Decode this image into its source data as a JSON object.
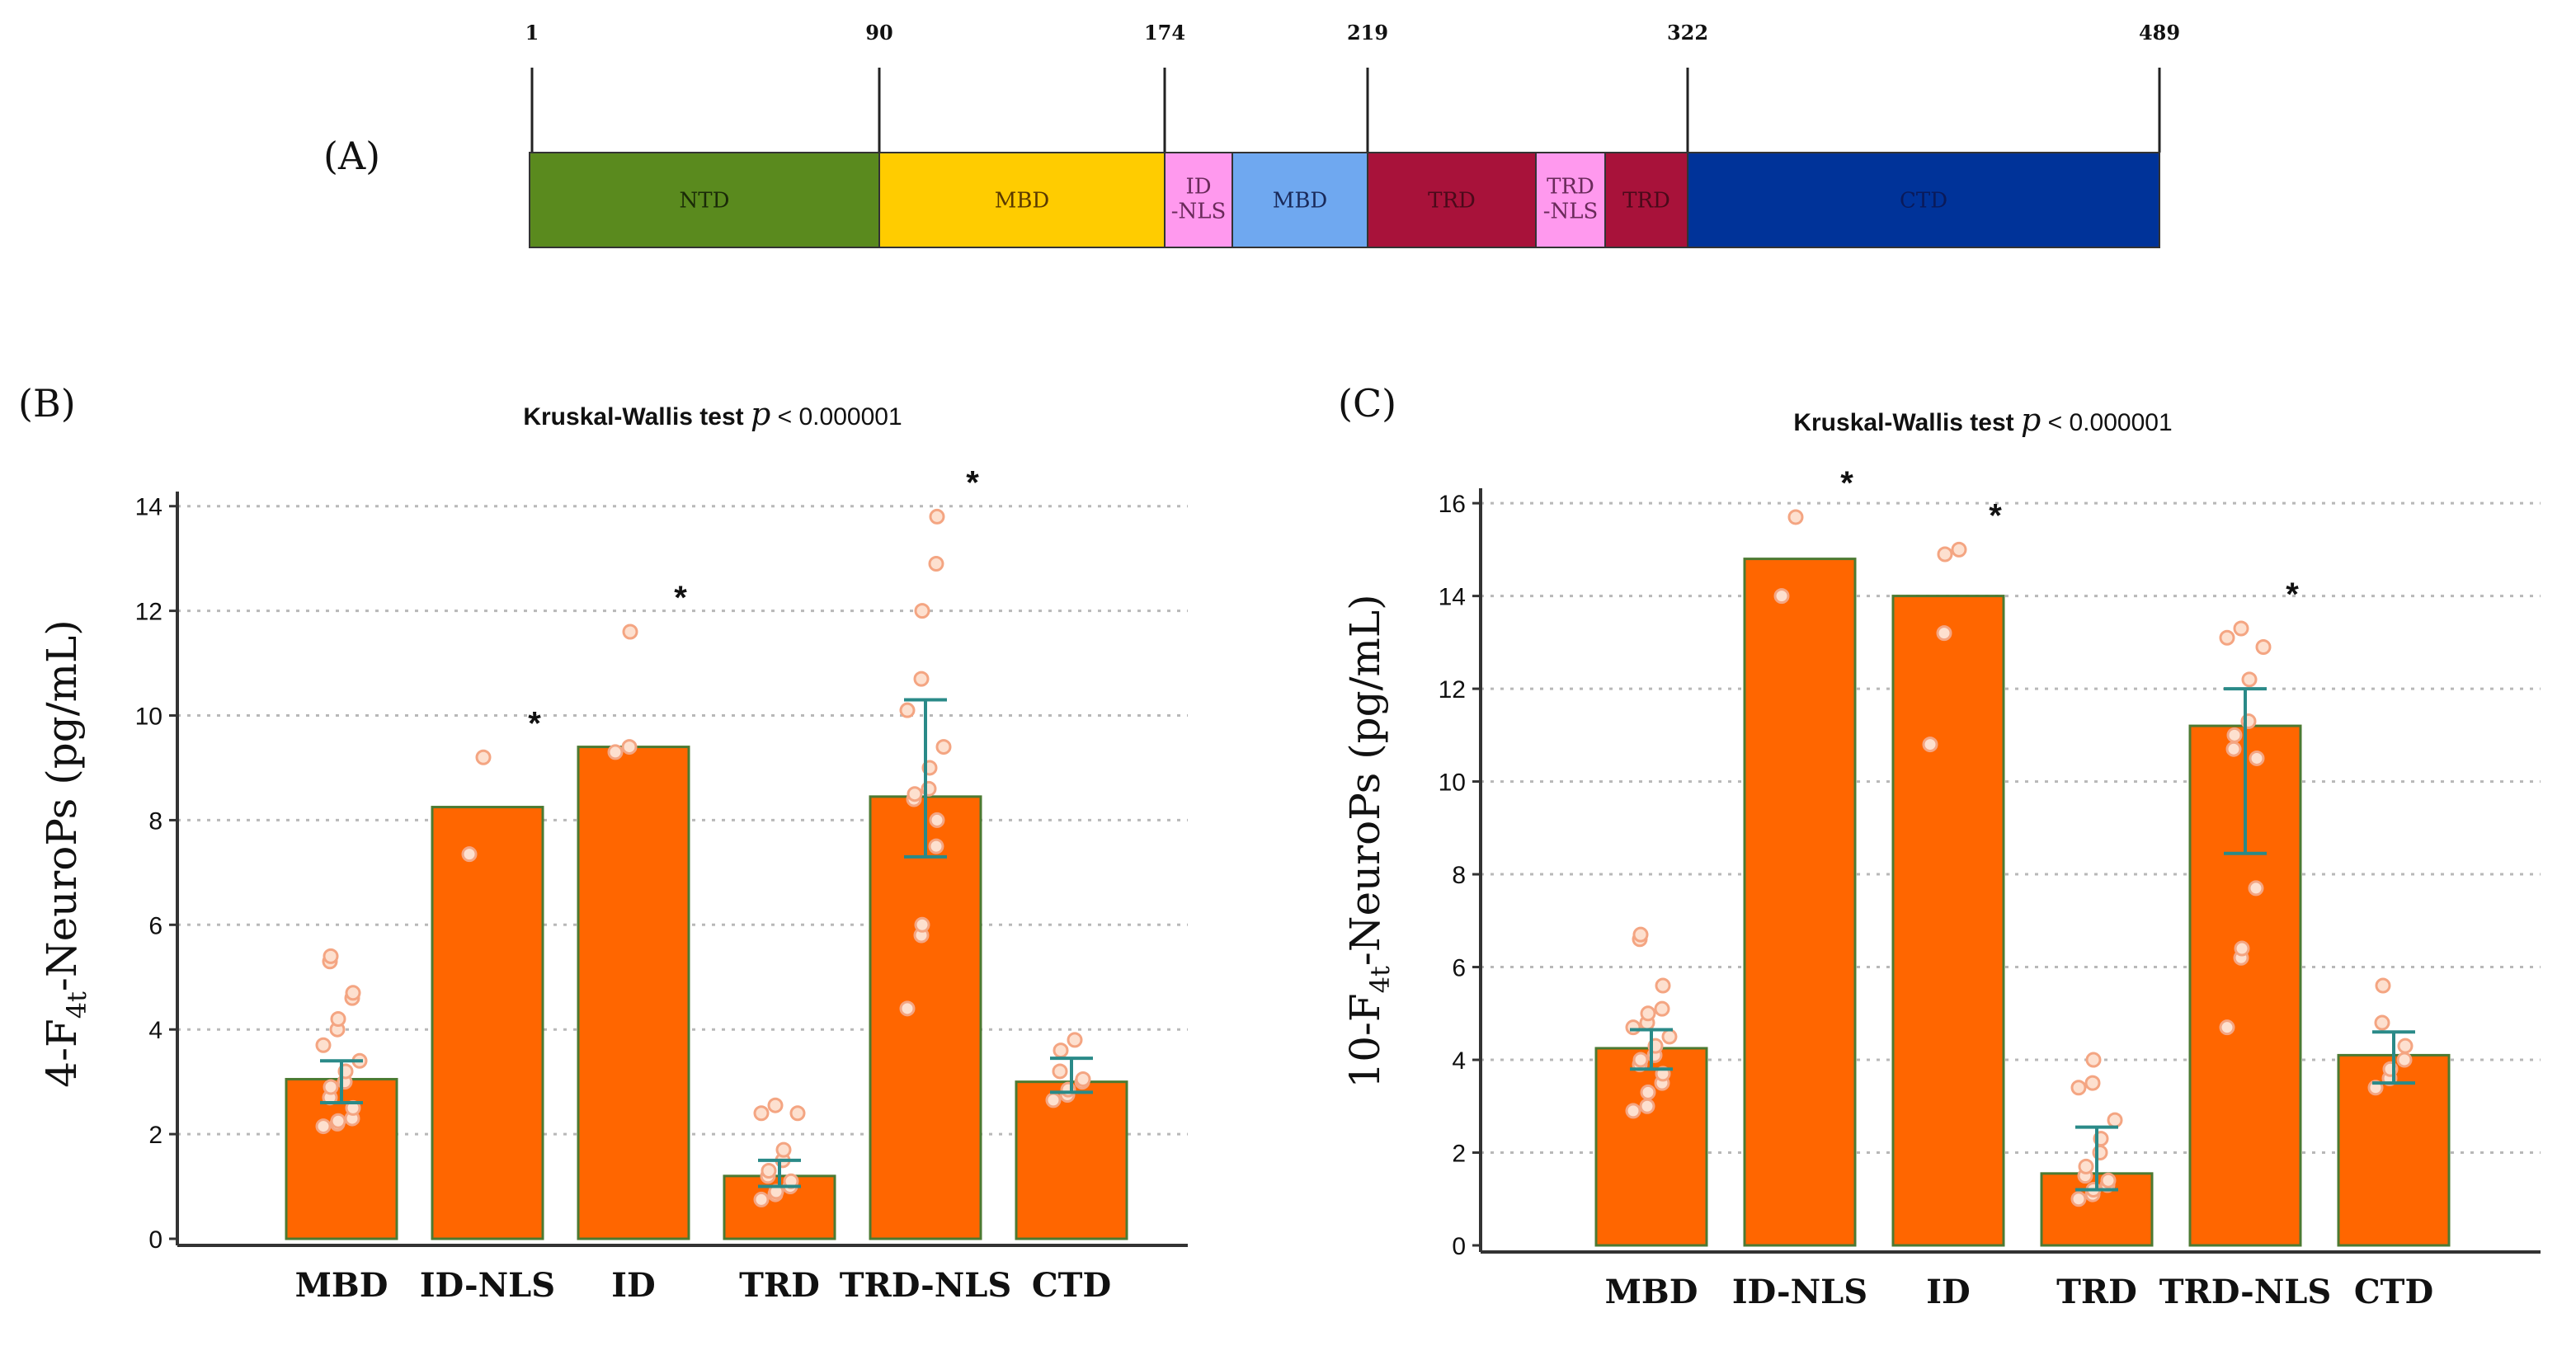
{
  "panel_labels": {
    "a": "(A)",
    "b": "(B)",
    "c": "(C)"
  },
  "colors": {
    "bar": "#ff6600",
    "bar_edge": "#4c7a32",
    "dot_edge": "#f4a582",
    "dot_fill": "#fde0cf",
    "error": "#2a8a88",
    "NTD": "#5a8a1e",
    "MBD": "#ffcc00",
    "MBD2": "#6fa8f0",
    "ID-NLS": "#ff99ee",
    "TRD": "#a8123a",
    "TRD-NLS": "#ff99ee",
    "CTD": "#003399"
  },
  "domain_map": {
    "positions": [
      "1",
      "90",
      "174",
      "219",
      "322",
      "489"
    ],
    "domains": [
      {
        "label": "NTD",
        "color_key": "NTD",
        "text_color": "#1a2a08",
        "lines": [
          "NTD"
        ]
      },
      {
        "label": "MBD",
        "color_key": "MBD",
        "text_color": "#5a3a00",
        "lines": [
          "MBD"
        ]
      },
      {
        "label": "ID-NLS",
        "color_key": "ID-NLS",
        "text_color": "#6a2a5a",
        "lines": [
          "ID",
          "-NLS"
        ]
      },
      {
        "label": "MBD",
        "color_key": "MBD2",
        "text_color": "#1a2a5a",
        "lines": [
          "MBD"
        ]
      },
      {
        "label": "TRD",
        "color_key": "TRD",
        "text_color": "#4a0a1a",
        "lines": [
          "TRD"
        ]
      },
      {
        "label": "TRD-NLS",
        "color_key": "TRD-NLS",
        "text_color": "#6a2a5a",
        "lines": [
          "TRD",
          "-NLS"
        ]
      },
      {
        "label": "TRD",
        "color_key": "TRD",
        "text_color": "#4a0a1a",
        "lines": [
          "TRD"
        ]
      },
      {
        "label": "CTD",
        "color_key": "CTD",
        "text_color": "#0a1a5a",
        "lines": [
          "CTD"
        ]
      }
    ]
  },
  "chart_data": [
    {
      "panel": "B",
      "type": "bar",
      "title": "Kruskal-Wallis test",
      "title_p": "p",
      "title_tail": "< 0.000001",
      "ylabel": "4-F",
      "ylabel_sub": "4t",
      "ylabel_tail": "-NeuroPs (pg/mL)",
      "xlabel": "",
      "ylim": [
        0,
        14.5
      ],
      "yticks": [
        0,
        2,
        4,
        6,
        8,
        10,
        12,
        14
      ],
      "categories": [
        "MBD",
        "ID-NLS",
        "ID",
        "TRD",
        "TRD-NLS",
        "CTD"
      ],
      "values": [
        3.05,
        8.25,
        9.4,
        1.2,
        8.45,
        3.0
      ],
      "error_low": [
        2.6,
        null,
        null,
        1.0,
        7.3,
        2.8
      ],
      "error_high": [
        3.4,
        null,
        null,
        1.5,
        10.3,
        3.45
      ],
      "significant": [
        false,
        true,
        true,
        false,
        true,
        false
      ],
      "points": [
        [
          2.15,
          2.2,
          2.25,
          2.3,
          2.5,
          2.7,
          2.9,
          3.0,
          3.2,
          3.4,
          3.7,
          4.0,
          4.2,
          4.6,
          4.7,
          5.3,
          5.4
        ],
        [
          7.35,
          9.2
        ],
        [
          9.3,
          9.4,
          11.6
        ],
        [
          0.75,
          0.85,
          0.9,
          1.0,
          1.1,
          1.2,
          1.3,
          1.5,
          1.7,
          2.4,
          2.4,
          2.55
        ],
        [
          4.4,
          5.8,
          6.0,
          7.5,
          8.0,
          8.4,
          8.5,
          8.6,
          9.0,
          9.4,
          10.1,
          10.7,
          12.0,
          12.9,
          13.8
        ],
        [
          2.65,
          2.75,
          2.85,
          3.0,
          3.05,
          3.2,
          3.6,
          3.8
        ]
      ]
    },
    {
      "panel": "C",
      "type": "bar",
      "title": "Kruskal-Wallis test",
      "title_p": "p",
      "title_tail": "< 0.000001",
      "ylabel": "10-F",
      "ylabel_sub": "4t",
      "ylabel_tail": "-NeuroPs (pg/mL)",
      "xlabel": "",
      "ylim": [
        0,
        16.5
      ],
      "yticks": [
        0,
        2,
        4,
        6,
        8,
        10,
        12,
        14,
        16
      ],
      "categories": [
        "MBD",
        "ID-NLS",
        "ID",
        "TRD",
        "TRD-NLS",
        "CTD"
      ],
      "values": [
        4.25,
        14.8,
        14.0,
        1.55,
        11.2,
        4.1
      ],
      "error_low": [
        3.8,
        null,
        null,
        1.2,
        8.45,
        3.5
      ],
      "error_high": [
        4.65,
        null,
        null,
        2.55,
        12.0,
        4.6
      ],
      "significant": [
        false,
        true,
        true,
        false,
        true,
        false
      ],
      "points": [
        [
          2.9,
          3.0,
          3.3,
          3.5,
          3.7,
          3.9,
          4.0,
          4.1,
          4.3,
          4.5,
          4.7,
          4.8,
          5.0,
          5.1,
          5.6,
          6.6,
          6.7
        ],
        [
          14.0,
          15.7
        ],
        [
          10.8,
          13.2,
          14.9,
          15.0
        ],
        [
          1.0,
          1.1,
          1.2,
          1.3,
          1.4,
          1.5,
          1.7,
          2.0,
          2.3,
          2.7,
          3.4,
          3.5,
          4.0
        ],
        [
          4.7,
          6.2,
          6.4,
          7.7,
          10.5,
          10.7,
          11.0,
          11.3,
          12.2,
          12.9,
          13.1,
          13.3
        ],
        [
          3.4,
          3.6,
          3.8,
          4.0,
          4.3,
          4.8,
          5.6
        ]
      ]
    }
  ]
}
